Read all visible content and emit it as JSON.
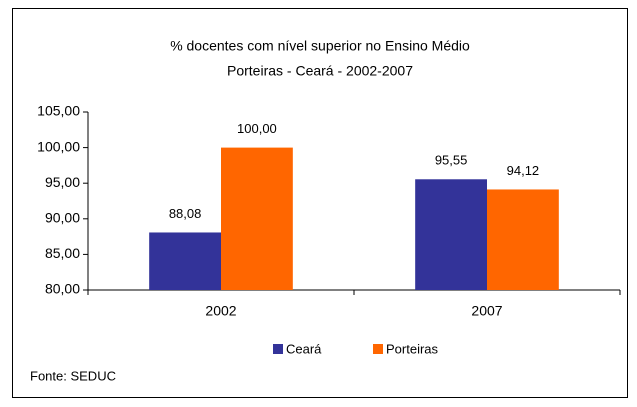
{
  "chart_data": {
    "type": "bar",
    "title": "% docentes com nível superior no Ensino Médio",
    "subtitle": "Porteiras  - Ceará - 2002-2007",
    "categories": [
      "2002",
      "2007"
    ],
    "series": [
      {
        "name": "Ceará",
        "color": "#333399",
        "values": [
          88.08,
          95.55
        ],
        "value_labels": [
          "88,08",
          "95,55"
        ]
      },
      {
        "name": "Porteiras",
        "color": "#ff6600",
        "values": [
          100,
          94.12
        ],
        "value_labels": [
          "100,00",
          "94,12"
        ]
      }
    ],
    "ylim": [
      80,
      105
    ],
    "yticks": [
      {
        "value": 80,
        "label": "80,00"
      },
      {
        "value": 85,
        "label": "85,00"
      },
      {
        "value": 90,
        "label": "90,00"
      },
      {
        "value": 95,
        "label": "95,00"
      },
      {
        "value": 100,
        "label": "100,00"
      },
      {
        "value": 105,
        "label": "105,00"
      }
    ],
    "grid": false,
    "legend": "bottom",
    "source": "Fonte: SEDUC"
  }
}
